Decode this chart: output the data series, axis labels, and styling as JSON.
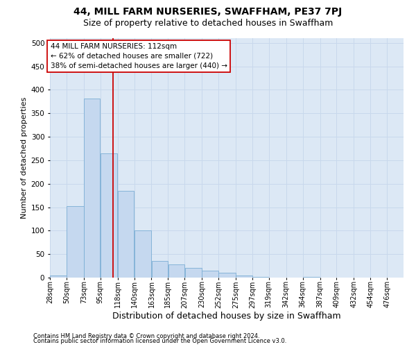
{
  "title": "44, MILL FARM NURSERIES, SWAFFHAM, PE37 7PJ",
  "subtitle": "Size of property relative to detached houses in Swaffham",
  "xlabel": "Distribution of detached houses by size in Swaffham",
  "ylabel": "Number of detached properties",
  "footnote1": "Contains HM Land Registry data © Crown copyright and database right 2024.",
  "footnote2": "Contains public sector information licensed under the Open Government Licence v3.0.",
  "bar_left_edges": [
    28,
    50,
    73,
    95,
    118,
    140,
    163,
    185,
    207,
    230,
    252,
    275,
    297,
    319,
    342,
    364,
    387,
    409,
    432,
    454
  ],
  "bar_widths": [
    22,
    23,
    22,
    23,
    22,
    23,
    22,
    22,
    23,
    22,
    23,
    22,
    22,
    23,
    22,
    23,
    22,
    23,
    22,
    22
  ],
  "bar_heights": [
    5,
    152,
    381,
    265,
    185,
    100,
    35,
    28,
    20,
    15,
    10,
    5,
    1,
    0,
    0,
    1,
    0,
    0,
    0,
    0
  ],
  "bar_color": "#c5d8ef",
  "bar_edge_color": "#7aadd4",
  "vline_x": 112,
  "vline_color": "#cc0000",
  "annotation_line1": "44 MILL FARM NURSERIES: 112sqm",
  "annotation_line2": "← 62% of detached houses are smaller (722)",
  "annotation_line3": "38% of semi-detached houses are larger (440) →",
  "ylim": [
    0,
    510
  ],
  "yticks": [
    0,
    50,
    100,
    150,
    200,
    250,
    300,
    350,
    400,
    450,
    500
  ],
  "xtick_labels": [
    "28sqm",
    "50sqm",
    "73sqm",
    "95sqm",
    "118sqm",
    "140sqm",
    "163sqm",
    "185sqm",
    "207sqm",
    "230sqm",
    "252sqm",
    "275sqm",
    "297sqm",
    "319sqm",
    "342sqm",
    "364sqm",
    "387sqm",
    "409sqm",
    "432sqm",
    "454sqm",
    "476sqm"
  ],
  "xtick_positions": [
    28,
    50,
    73,
    95,
    118,
    140,
    163,
    185,
    207,
    230,
    252,
    275,
    297,
    319,
    342,
    364,
    387,
    409,
    432,
    454,
    476
  ],
  "grid_color": "#c8d8ec",
  "bg_color": "#dce8f5",
  "title_fontsize": 10,
  "subtitle_fontsize": 9,
  "ylabel_fontsize": 8,
  "xlabel_fontsize": 9,
  "tick_fontsize": 7,
  "annotation_fontsize": 7.5,
  "footnote_fontsize": 6,
  "xlim_left": 28,
  "xlim_right": 498
}
